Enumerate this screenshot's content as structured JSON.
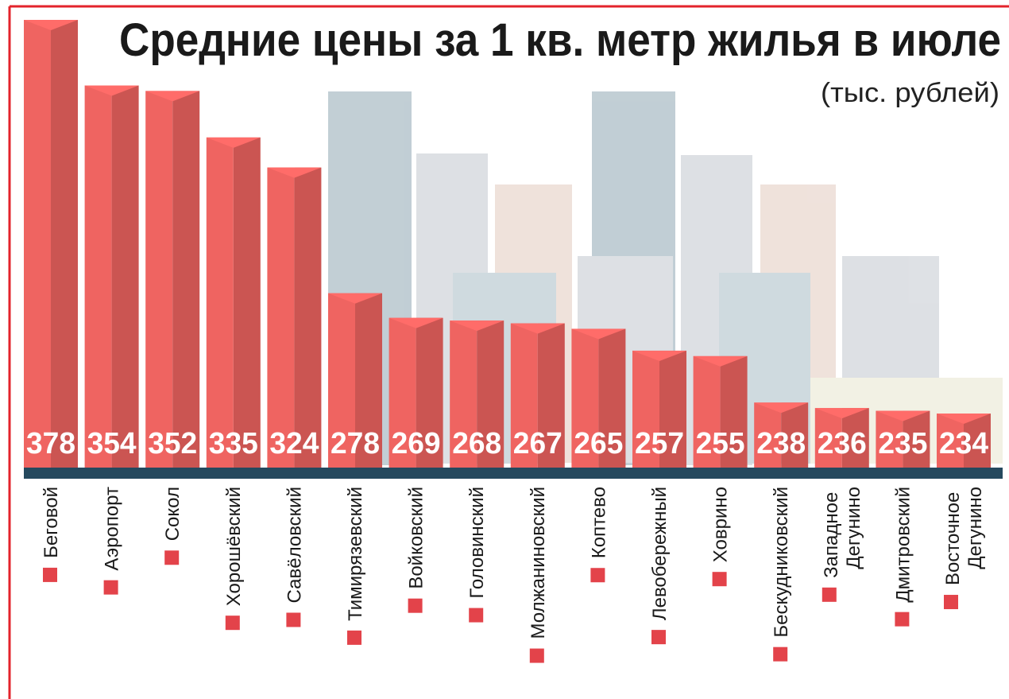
{
  "chart_data": {
    "type": "bar",
    "title": "Средние цены за 1 кв. метр жилья в июле",
    "subtitle": "(тыс. рублей)",
    "categories": [
      "Беговой",
      "Аэропорт",
      "Сокол",
      "Хорошёвский",
      "Савёловский",
      "Тимирязевский",
      "Войковский",
      "Головинский",
      "Молжаниновский",
      "Коптево",
      "Левобережный",
      "Ховрино",
      "Бескудниковский",
      "Западное Дегунино",
      "Дмитровский",
      "Восточное Дегунино"
    ],
    "values": [
      378,
      354,
      352,
      335,
      324,
      278,
      269,
      268,
      267,
      265,
      257,
      255,
      238,
      236,
      235,
      234
    ],
    "color": "#ef6461"
  }
}
